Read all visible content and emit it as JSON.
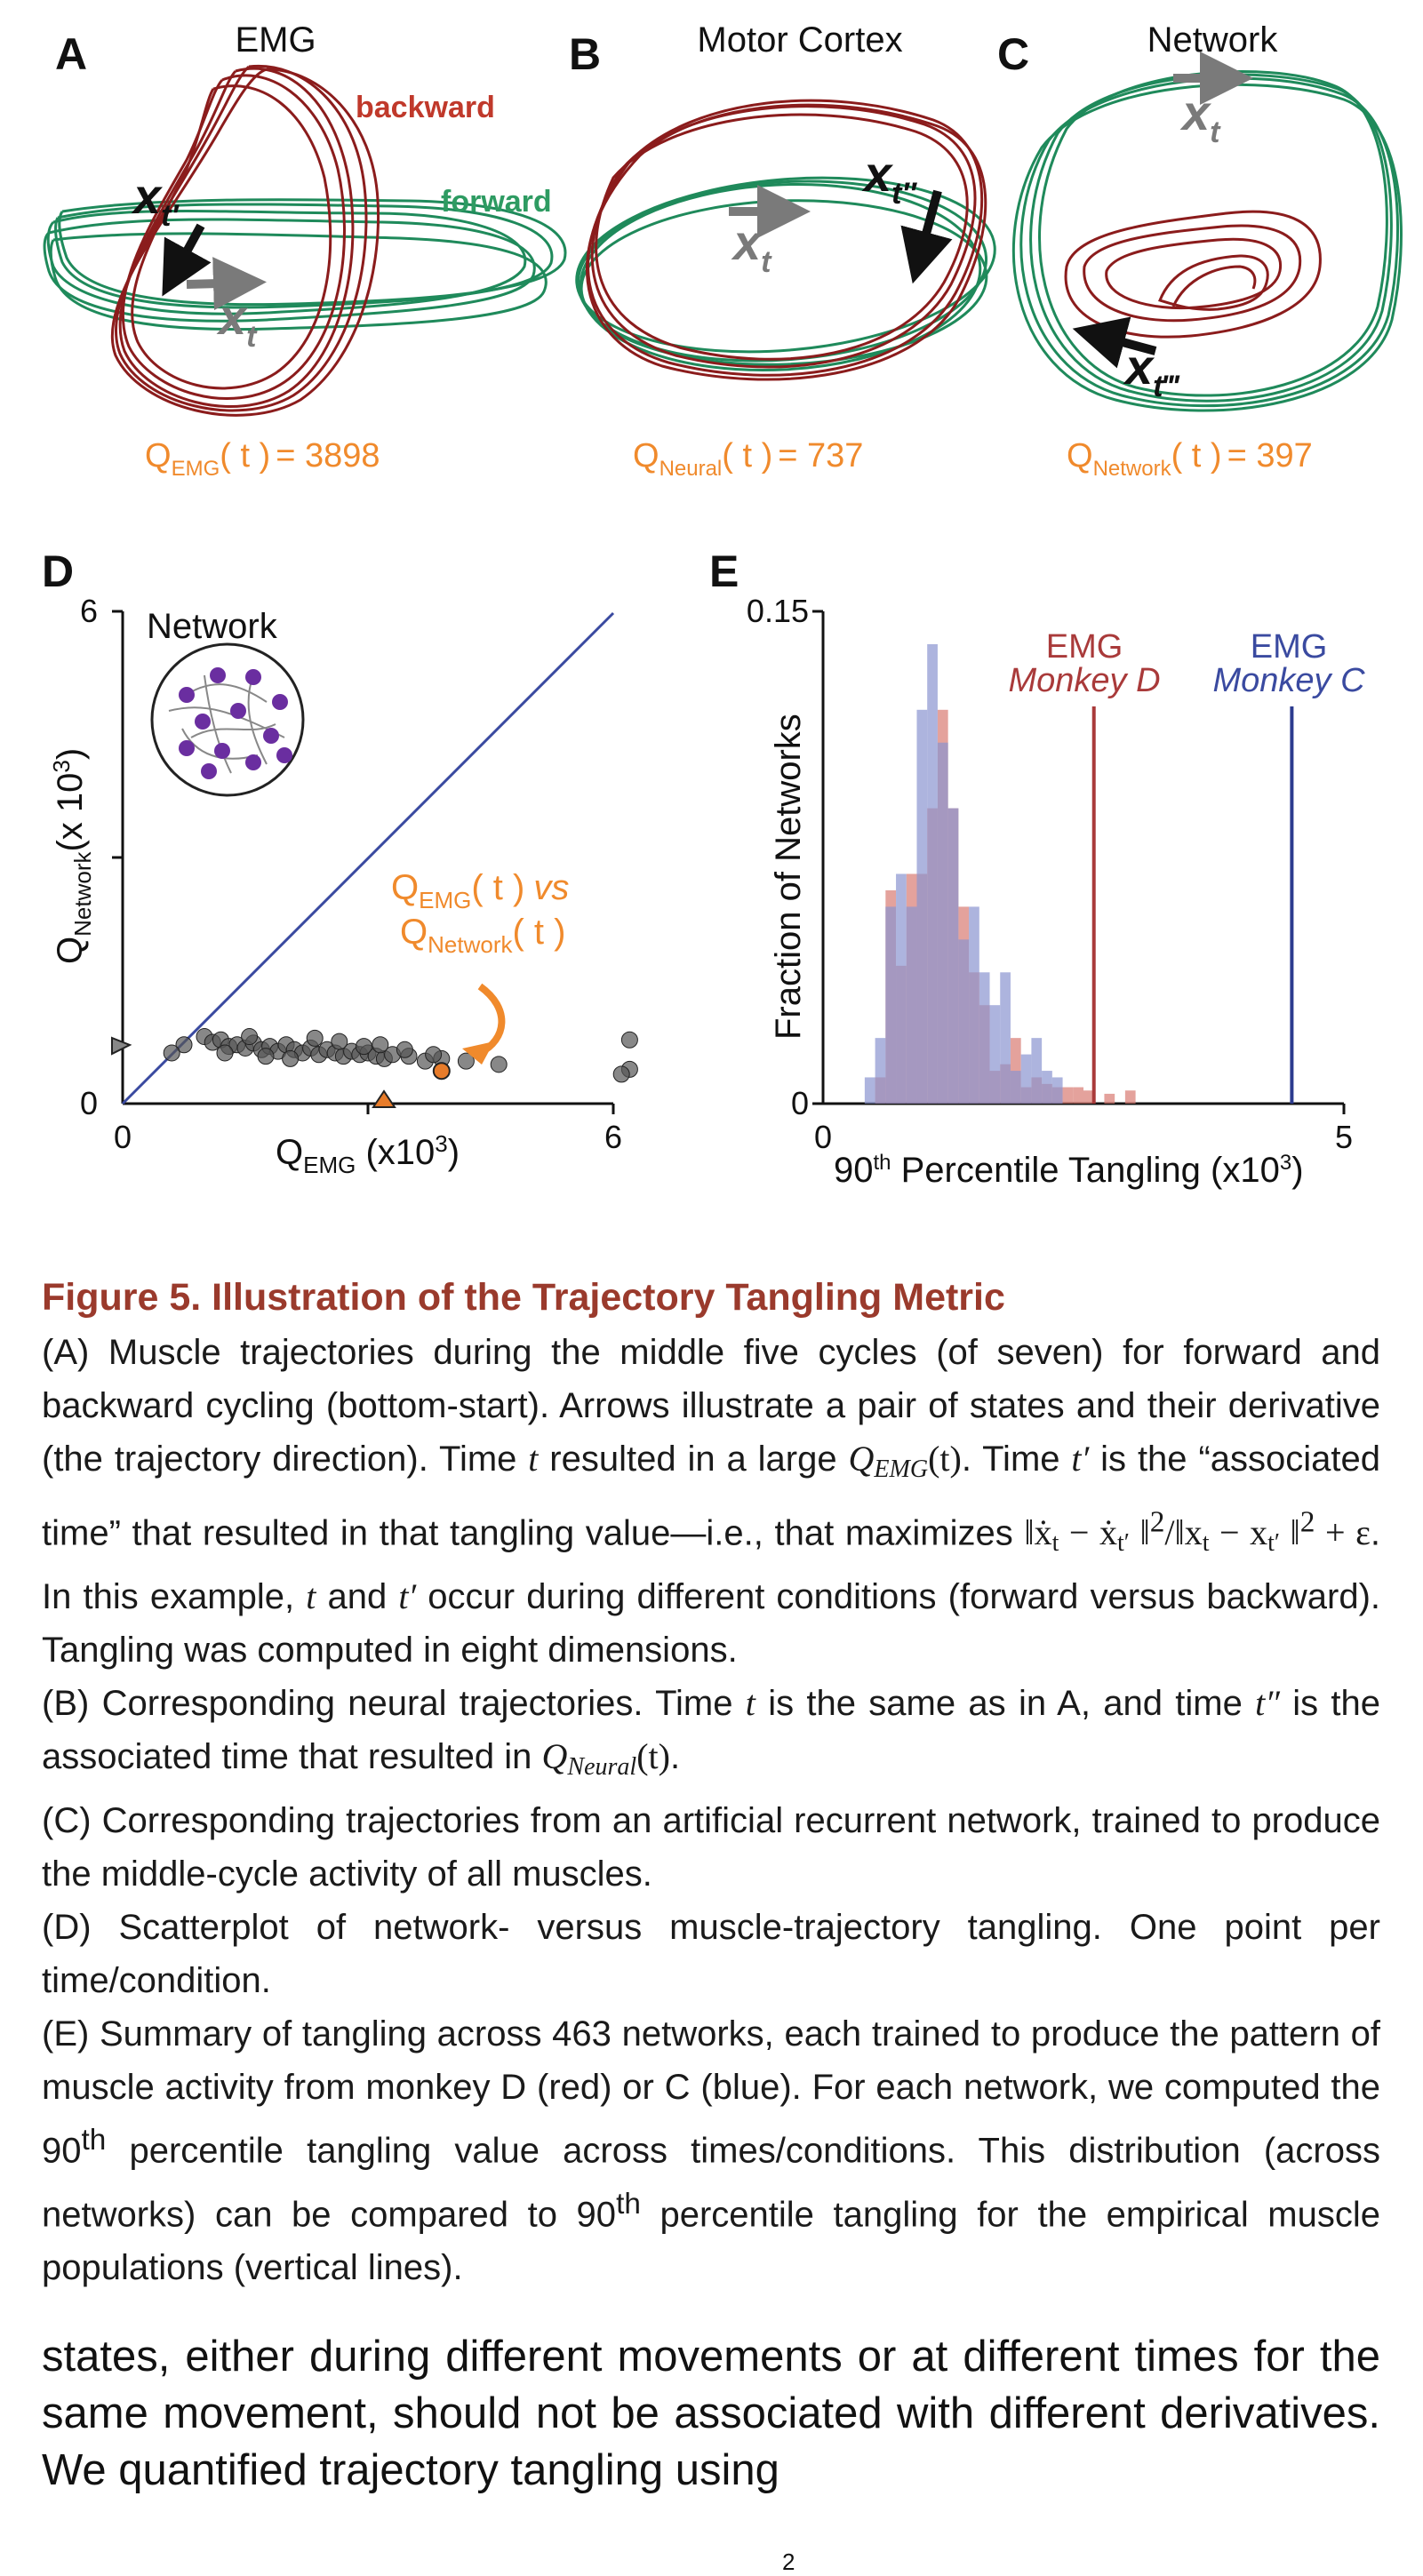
{
  "panels": {
    "A": {
      "letter": "A",
      "title": "EMG",
      "label_backward": "backward",
      "label_forward": "forward",
      "q_sym": "Q",
      "q_sub": "EMG",
      "q_arg": "( t )",
      "q_eq": "=  3898"
    },
    "B": {
      "letter": "B",
      "title": "Motor Cortex",
      "q_sym": "Q",
      "q_sub": "Neural",
      "q_arg": "( t )",
      "q_eq": "= 737"
    },
    "C": {
      "letter": "C",
      "title": "Network",
      "q_sym": "Q",
      "q_sub": "Network",
      "q_arg": "( t )",
      "q_eq": "= 397"
    },
    "D": {
      "letter": "D",
      "inset_title": "Network",
      "annotation_line1_sym": "Q",
      "annotation_line1_sub": "EMG",
      "annotation_line1_rest": "( t )",
      "annotation_vs": "vs",
      "annotation_line2_sym": "Q",
      "annotation_line2_sub": "Network",
      "annotation_line2_rest": "( t )",
      "ylabel_sym": "Q",
      "ylabel_sub": "Network",
      "ylabel_rest": "(x 10",
      "ylabel_sup": "3",
      "ylabel_close": ")",
      "xlabel_sym": "Q",
      "xlabel_sub": "EMG",
      "xlabel_rest": " (x10",
      "xlabel_sup": "3",
      "xlabel_close": ")"
    },
    "E": {
      "letter": "E",
      "ylabel": "Fraction of Networks",
      "xlabel_a": "90",
      "xlabel_sup": "th",
      "xlabel_b": " Percentile Tangling (x10",
      "xlabel_sup2": "3",
      "xlabel_c": ")",
      "line_d_top": "EMG",
      "line_d_bottom": "Monkey D",
      "line_c_top": "EMG",
      "line_c_bottom": "Monkey C"
    }
  },
  "arrows": {
    "xt": "x",
    "xt_sub": "t",
    "xtp_sub": "t′",
    "xtpp_sub": "t″",
    "xtppp_sub": "t‴"
  },
  "colors": {
    "backward": "#8b1c1c",
    "forward": "#1f8a5b",
    "orange": "#f08a2c",
    "blue": "#3a4aa0",
    "title_red": "#9a3a2c"
  },
  "chart_data": [
    {
      "panel": "D",
      "type": "scatter",
      "xlim": [
        0,
        6
      ],
      "ylim": [
        0,
        6
      ],
      "xticks": [
        "0",
        "6"
      ],
      "yticks": [
        "0",
        "6"
      ],
      "diagonal": "y = x",
      "points": [
        [
          1.0,
          0.82
        ],
        [
          1.1,
          0.75
        ],
        [
          1.2,
          0.78
        ],
        [
          1.3,
          0.7
        ],
        [
          1.4,
          0.72
        ],
        [
          1.5,
          0.68
        ],
        [
          1.6,
          0.74
        ],
        [
          1.7,
          0.66
        ],
        [
          1.8,
          0.7
        ],
        [
          1.9,
          0.64
        ],
        [
          2.0,
          0.72
        ],
        [
          2.1,
          0.66
        ],
        [
          2.2,
          0.62
        ],
        [
          2.3,
          0.68
        ],
        [
          2.4,
          0.6
        ],
        [
          2.5,
          0.66
        ],
        [
          2.6,
          0.62
        ],
        [
          2.7,
          0.58
        ],
        [
          2.8,
          0.64
        ],
        [
          2.9,
          0.6
        ],
        [
          3.0,
          0.62
        ],
        [
          3.1,
          0.58
        ],
        [
          3.2,
          0.55
        ],
        [
          3.3,
          0.6
        ],
        [
          3.5,
          0.58
        ],
        [
          3.7,
          0.52
        ],
        [
          3.9,
          0.55
        ],
        [
          4.2,
          0.52
        ],
        [
          4.6,
          0.48
        ],
        [
          6.2,
          0.78
        ],
        [
          6.2,
          0.42
        ],
        [
          6.1,
          0.36
        ],
        [
          1.25,
          0.62
        ],
        [
          1.55,
          0.82
        ],
        [
          1.75,
          0.58
        ],
        [
          2.05,
          0.55
        ],
        [
          2.35,
          0.8
        ],
        [
          2.65,
          0.76
        ],
        [
          2.95,
          0.7
        ],
        [
          3.15,
          0.72
        ],
        [
          3.45,
          0.66
        ],
        [
          3.8,
          0.6
        ],
        [
          0.75,
          0.72
        ],
        [
          0.6,
          0.62
        ]
      ],
      "highlighted_point": [
        3.9,
        0.4
      ]
    },
    {
      "panel": "E",
      "type": "bar",
      "xlim": [
        0,
        5
      ],
      "ylim": [
        0,
        0.15
      ],
      "xticks": [
        "0",
        "5"
      ],
      "yticks": [
        "0",
        "0.15"
      ],
      "series": [
        {
          "name": "Monkey D",
          "color": "#d97a72",
          "x": [
            0.55,
            0.65,
            0.75,
            0.85,
            0.95,
            1.05,
            1.15,
            1.25,
            1.35,
            1.45,
            1.55,
            1.65,
            1.75,
            1.85,
            1.95,
            2.05,
            2.15,
            2.25,
            2.35,
            2.45,
            2.55,
            2.75,
            2.95
          ],
          "values": [
            0.008,
            0.065,
            0.042,
            0.07,
            0.07,
            0.09,
            0.12,
            0.09,
            0.06,
            0.04,
            0.03,
            0.01,
            0.012,
            0.02,
            0.005,
            0.008,
            0.006,
            0.005,
            0.005,
            0.005,
            0.004,
            0.003,
            0.004
          ]
        },
        {
          "name": "Monkey C",
          "color": "#8a94d0",
          "x": [
            0.45,
            0.55,
            0.65,
            0.75,
            0.85,
            0.95,
            1.05,
            1.15,
            1.25,
            1.35,
            1.45,
            1.55,
            1.65,
            1.75,
            1.85,
            1.95,
            2.05,
            2.15,
            2.25
          ],
          "values": [
            0.008,
            0.02,
            0.06,
            0.07,
            0.06,
            0.12,
            0.14,
            0.11,
            0.09,
            0.05,
            0.06,
            0.04,
            0.03,
            0.04,
            0.01,
            0.015,
            0.02,
            0.01,
            0.008
          ]
        }
      ],
      "vlines": [
        {
          "name": "EMG Monkey D",
          "x": 2.6,
          "color": "#a93a3a"
        },
        {
          "name": "EMG Monkey C",
          "x": 4.5,
          "color": "#2c3b8f"
        }
      ]
    }
  ],
  "caption": {
    "title": "Figure 5.  Illustration of the Trajectory Tangling Metric",
    "pA_1": "(A) Muscle trajectories during the middle five cycles (of seven) for forward and backward cycling (bottom-start). Arrows illustrate a pair of states and their derivative (the trajectory direction). Time ",
    "pA_t1": "t",
    "pA_2": " resulted in a large ",
    "pA_q": "Q",
    "pA_qsub": "EMG",
    "pA_qarg": "(t)",
    "pA_3": ". Time ",
    "pA_tp": "t′",
    "pA_4": " is the “associated time” that resulted in that tangling value—i.e., that maximizes ",
    "pA_formula": "‖ẋ",
    "pA_formula_sub1": "t",
    "pA_formula_mid": " − ẋ",
    "pA_formula_sub2": "t′",
    "pA_formula_end": " ‖",
    "pA_formula_sup": "2",
    "pA_formula_div": "/‖x",
    "pA_formula_sub3": "t",
    "pA_formula_mid2": " − x",
    "pA_formula_sub4": "t′",
    "pA_formula_end2": " ‖",
    "pA_formula_sup2": "2",
    "pA_formula_eps": " + ε",
    "pA_5": ". In this example, ",
    "pA_t2": "t",
    "pA_6": " and ",
    "pA_tp2": "t′",
    "pA_7": " occur during different conditions (forward versus backward). Tangling was computed in eight dimensions.",
    "pB_1": "(B) Corresponding neural trajectories. Time ",
    "pB_t": "t",
    "pB_2": " is the same as in A, and time ",
    "pB_tpp": "t″",
    "pB_3": " is the associated time that resulted in ",
    "pB_q": "Q",
    "pB_qsub": "Neural",
    "pB_qarg": "(t)",
    "pB_4": ".",
    "pC": "(C) Corresponding trajectories from an artificial recurrent network, trained to produce the middle-cycle activity of all muscles.",
    "pD": "(D) Scatterplot of network- versus muscle-trajectory tangling. One point per time/condition.",
    "pE_1": "(E) Summary of tangling across 463 networks, each trained to produce the pattern of muscle activity from monkey D (red) or C (blue). For each network, we computed the 90",
    "pE_sup1": "th",
    "pE_2": " percentile tangling value across times/conditions. This distribution (across networks) can be compared to 90",
    "pE_sup2": "th",
    "pE_3": " percentile tangling for the empirical muscle populations (vertical lines)."
  },
  "body_text": "states, either during different movements or at different times for the same movement, should not be associated with different derivatives. We quantified trajectory tangling using",
  "equation_fragment": "2"
}
